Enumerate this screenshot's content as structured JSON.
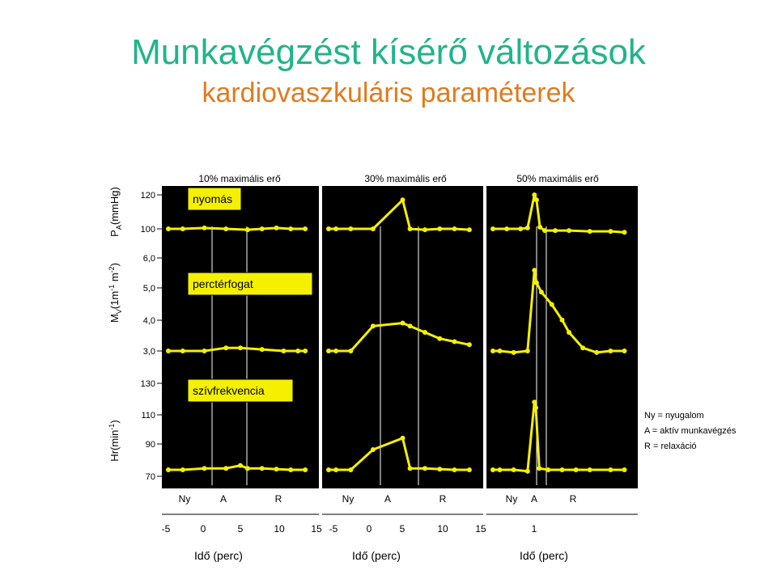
{
  "title": "Munkavégzést kísérő változások",
  "subtitle": "kardiovaszkuláris paraméterek",
  "colors": {
    "title": "#1fb58a",
    "subtitle": "#e07b1e",
    "panel": "#000000",
    "trace": "#f5f000",
    "label_box": "#f5f000"
  },
  "legend": [
    "Ny  = nyugalom",
    "A = aktív munkavégzés",
    "R = relaxáció"
  ],
  "chart_data": {
    "type": "line",
    "panel_headers": [
      "10% maximális erő",
      "30% maximális erő",
      "50% maximális erő"
    ],
    "phase_labels": [
      [
        "Ny",
        "A",
        "R"
      ],
      [
        "Ny",
        "A",
        "R"
      ],
      [
        "Ny",
        "A",
        "R"
      ]
    ],
    "x_ticks": [
      [
        "-5",
        "0",
        "5",
        "10",
        "15"
      ],
      [
        "-5",
        "0",
        "5",
        "10",
        "15"
      ],
      [
        "1"
      ]
    ],
    "xlabel": "Idő (perc)",
    "rows": [
      {
        "ylabel": "P",
        "ylabel_sub": "A",
        "ylabel_unit": "(mmHg)",
        "ticks": [
          "120",
          "100"
        ],
        "trace_label": "nyomás",
        "series": [
          [
            [
              -5,
              100
            ],
            [
              -3,
              100
            ],
            [
              0,
              100.5
            ],
            [
              3,
              100
            ],
            [
              6,
              99.5
            ],
            [
              8,
              100
            ],
            [
              10,
              100.5
            ],
            [
              12,
              100
            ],
            [
              14,
              100
            ]
          ],
          [
            [
              -5,
              100
            ],
            [
              -4,
              100
            ],
            [
              -2,
              100
            ],
            [
              1,
              100
            ],
            [
              5,
              117
            ],
            [
              6,
              100
            ],
            [
              8,
              99.5
            ],
            [
              10,
              100
            ],
            [
              12,
              100
            ],
            [
              14,
              99.5
            ]
          ],
          [
            [
              -5,
              100
            ],
            [
              -3,
              100
            ],
            [
              -1,
              100
            ],
            [
              0,
              100.5
            ],
            [
              1,
              120
            ],
            [
              1.3,
              117
            ],
            [
              1.8,
              101
            ],
            [
              2.5,
              99
            ],
            [
              4,
              99
            ],
            [
              6,
              99
            ],
            [
              9,
              98.5
            ],
            [
              12,
              98.5
            ],
            [
              14,
              98
            ]
          ]
        ]
      },
      {
        "ylabel": "M",
        "ylabel_sub": "V",
        "ylabel_unit": "(1m",
        "ylabel_unit_sup": "-1",
        "ylabel_unit2": " m",
        "ylabel_unit2_sup": "-2",
        "ylabel_unit3": ")",
        "ticks": [
          "6,0",
          "5,0",
          "4,0",
          "3,0"
        ],
        "trace_label": "perctérfogat",
        "series": [
          [
            [
              -5,
              3.0
            ],
            [
              -3,
              3.0
            ],
            [
              0,
              3.0
            ],
            [
              3,
              3.1
            ],
            [
              5,
              3.1
            ],
            [
              8,
              3.05
            ],
            [
              11,
              3.0
            ],
            [
              13,
              3.0
            ],
            [
              14,
              3.0
            ]
          ],
          [
            [
              -5,
              3.0
            ],
            [
              -4,
              3.0
            ],
            [
              -2,
              3.0
            ],
            [
              1,
              3.8
            ],
            [
              5,
              3.9
            ],
            [
              6,
              3.8
            ],
            [
              8,
              3.6
            ],
            [
              10,
              3.4
            ],
            [
              12,
              3.3
            ],
            [
              14,
              3.2
            ]
          ],
          [
            [
              -5,
              3.0
            ],
            [
              -4,
              3.0
            ],
            [
              -2,
              2.95
            ],
            [
              0,
              3.0
            ],
            [
              1,
              5.6
            ],
            [
              1.3,
              5.2
            ],
            [
              2,
              4.9
            ],
            [
              3.5,
              4.5
            ],
            [
              5,
              4.0
            ],
            [
              6,
              3.6
            ],
            [
              8,
              3.1
            ],
            [
              10,
              2.95
            ],
            [
              12,
              3.0
            ],
            [
              14,
              3.0
            ]
          ]
        ]
      },
      {
        "ylabel": "Hr(min",
        "ylabel_unit_sup": "-1",
        "ylabel_unit3": ")",
        "ticks": [
          "130",
          "110",
          "90",
          "70"
        ],
        "trace_label": "szívfrekvencia",
        "series": [
          [
            [
              -5,
              70
            ],
            [
              -3,
              70
            ],
            [
              0,
              71
            ],
            [
              3,
              71
            ],
            [
              5,
              73
            ],
            [
              6,
              71
            ],
            [
              8,
              71
            ],
            [
              10,
              70.5
            ],
            [
              12,
              70
            ],
            [
              14,
              70
            ]
          ],
          [
            [
              -5,
              70
            ],
            [
              -4,
              70
            ],
            [
              -2,
              70
            ],
            [
              1,
              84
            ],
            [
              5,
              92
            ],
            [
              6,
              71
            ],
            [
              8,
              71
            ],
            [
              10,
              70.5
            ],
            [
              12,
              70
            ],
            [
              14,
              70
            ]
          ],
          [
            [
              -5,
              70
            ],
            [
              -4,
              70
            ],
            [
              -2,
              70
            ],
            [
              0,
              69
            ],
            [
              1,
              117
            ],
            [
              1.2,
              113
            ],
            [
              1.7,
              71
            ],
            [
              3,
              70
            ],
            [
              5,
              70
            ],
            [
              7,
              70
            ],
            [
              9,
              70
            ],
            [
              12,
              70
            ],
            [
              14,
              70
            ]
          ]
        ]
      }
    ]
  }
}
